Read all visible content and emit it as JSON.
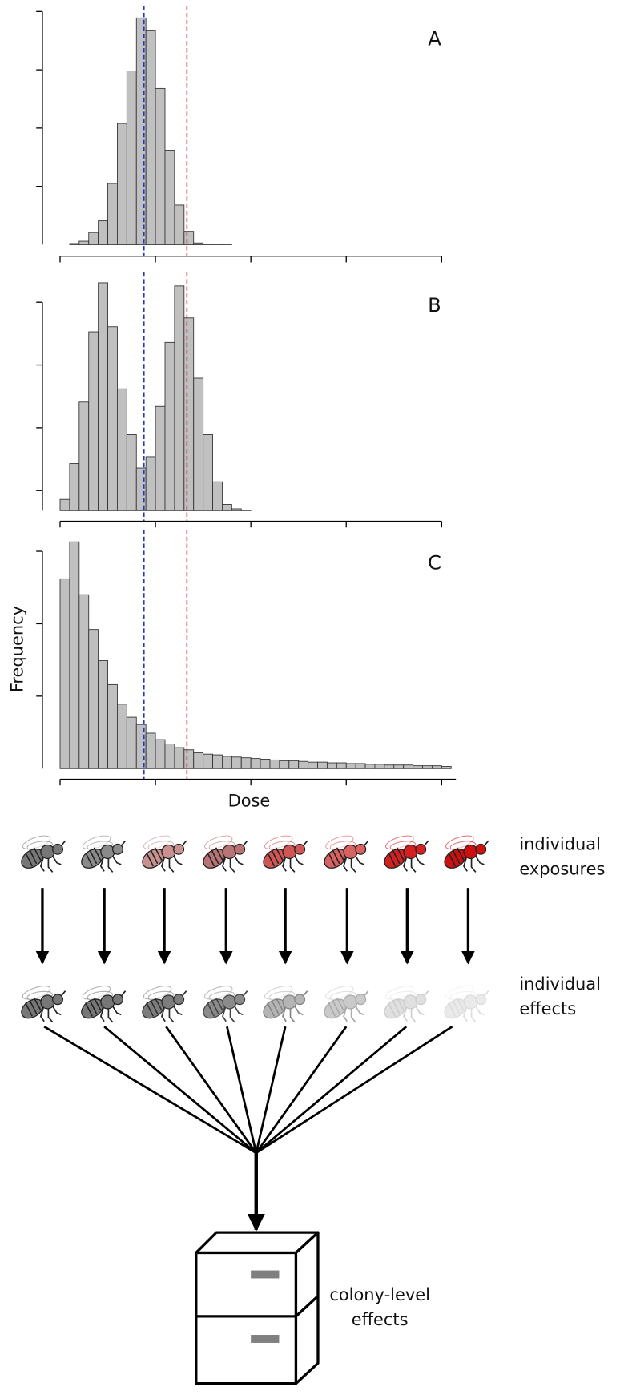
{
  "chart_data": [
    {
      "type": "histogram",
      "label": "A",
      "color": "#c0c0c0",
      "bins": [
        0.1,
        0.2,
        0.3,
        0.4,
        0.5,
        0.6,
        0.7,
        0.8,
        0.9,
        1.0,
        1.1,
        1.2,
        1.3,
        1.4,
        1.5,
        1.6,
        1.7,
        1.8
      ],
      "values": [
        0.02,
        0.06,
        0.21,
        0.41,
        1.05,
        2.08,
        2.98,
        3.89,
        3.67,
        2.68,
        1.62,
        0.68,
        0.23,
        0.03,
        0.01,
        0.01,
        0.01
      ],
      "xlim": [
        0,
        4
      ],
      "xticks": [
        0,
        1,
        2,
        3,
        4
      ],
      "ylim": [
        0,
        4.1
      ],
      "yticks": [
        1,
        2,
        3,
        4
      ],
      "reference_lines": [
        {
          "value": 0.88,
          "color": "#2233bb"
        },
        {
          "value": 1.33,
          "color": "#cc2222"
        }
      ]
    },
    {
      "type": "histogram",
      "label": "B",
      "color": "#c0c0c0",
      "bins": [
        0,
        0.1,
        0.2,
        0.3,
        0.4,
        0.5,
        0.6,
        0.7,
        0.8,
        0.9,
        1.0,
        1.1,
        1.2,
        1.3,
        1.4,
        1.5,
        1.6,
        1.7,
        1.8,
        1.9,
        2.0
      ],
      "values": [
        0.18,
        0.75,
        1.73,
        2.85,
        3.63,
        2.93,
        1.94,
        1.21,
        0.68,
        0.86,
        1.66,
        2.68,
        3.58,
        3.07,
        2.11,
        1.21,
        0.46,
        0.1,
        0.03,
        0.01
      ],
      "xlim": [
        0,
        4
      ],
      "xticks": [
        0,
        1,
        2,
        3,
        4
      ],
      "ylim": [
        0,
        3.8
      ],
      "yticks": [
        0.32,
        1.32,
        2.32,
        3.32
      ],
      "reference_lines": [
        {
          "value": 0.88,
          "color": "#2233bb"
        },
        {
          "value": 1.33,
          "color": "#cc2222"
        }
      ]
    },
    {
      "type": "histogram",
      "label": "C",
      "color": "#c0c0c0",
      "x_label": "Dose",
      "y_label": "Frequency",
      "bins": [
        0,
        0.1,
        0.2,
        0.3,
        0.4,
        0.5,
        0.6,
        0.7,
        0.8,
        0.9,
        1.0,
        1.1,
        1.2,
        1.3,
        1.4,
        1.5,
        1.6,
        1.7,
        1.8,
        1.9,
        2.0,
        2.1,
        2.2,
        2.3,
        2.4,
        2.5,
        2.6,
        2.7,
        2.8,
        2.9,
        3.0,
        3.1,
        3.2,
        3.3,
        3.4,
        3.5,
        3.6,
        3.7,
        3.8,
        3.9,
        4.0,
        4.1
      ],
      "values": [
        2.62,
        3.13,
        2.4,
        1.92,
        1.49,
        1.16,
        0.89,
        0.71,
        0.61,
        0.49,
        0.4,
        0.34,
        0.29,
        0.26,
        0.22,
        0.2,
        0.19,
        0.17,
        0.16,
        0.15,
        0.14,
        0.13,
        0.12,
        0.11,
        0.11,
        0.1,
        0.09,
        0.09,
        0.08,
        0.08,
        0.07,
        0.07,
        0.06,
        0.06,
        0.05,
        0.05,
        0.05,
        0.04,
        0.04,
        0.04,
        0.03
      ],
      "xlim": [
        0,
        4.15
      ],
      "xticks": [
        0,
        1,
        2,
        3,
        4
      ],
      "ylim": [
        0,
        3.3
      ],
      "yticks": [
        1,
        2,
        3
      ],
      "reference_lines": [
        {
          "value": 0.88,
          "color": "#2233bb"
        },
        {
          "value": 1.33,
          "color": "#cc2222"
        }
      ]
    }
  ],
  "diagram": {
    "exposures_label": [
      "individual",
      "exposures"
    ],
    "effects_label": [
      "individual",
      "effects"
    ],
    "colony_label": [
      "colony-level",
      "effects"
    ]
  }
}
